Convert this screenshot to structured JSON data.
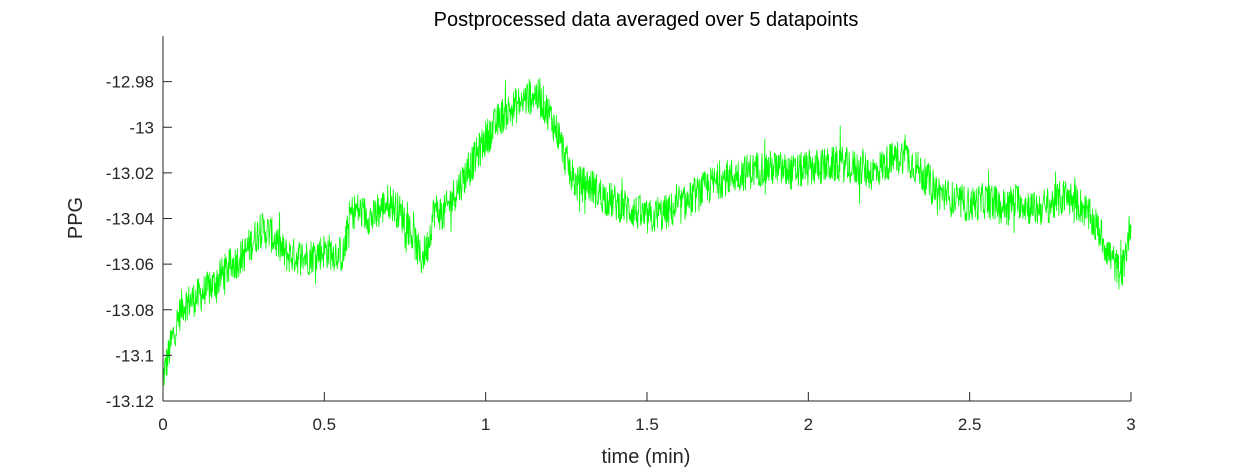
{
  "chart_data": {
    "type": "line",
    "title": "Postprocessed data averaged over 5 datapoints",
    "xlabel": "time (min)",
    "ylabel": "PPG",
    "xlim": [
      0,
      3
    ],
    "ylim": [
      -13.12,
      -12.96
    ],
    "x_ticks": [
      0,
      0.5,
      1,
      1.5,
      2,
      2.5,
      3
    ],
    "x_tick_labels": [
      "0",
      "0.5",
      "1",
      "1.5",
      "2",
      "2.5",
      "3"
    ],
    "y_ticks": [
      -13.12,
      -13.1,
      -13.08,
      -13.06,
      -13.04,
      -13.02,
      -13,
      -12.98
    ],
    "y_tick_labels": [
      "-13.12",
      "-13.1",
      "-13.08",
      "-13.06",
      "-13.04",
      "-13.02",
      "-13",
      "-12.98"
    ],
    "grid": false,
    "line_color": "#00ff00",
    "series": [
      {
        "x": [
          0,
          0.03,
          0.06,
          0.1,
          0.15,
          0.2,
          0.25,
          0.3,
          0.33,
          0.38,
          0.45,
          0.5,
          0.56,
          0.58,
          0.6,
          0.65,
          0.7,
          0.75,
          0.78,
          0.8,
          0.82,
          0.84,
          0.87,
          0.9,
          0.95,
          1.0,
          1.05,
          1.1,
          1.15,
          1.18,
          1.2,
          1.23,
          1.25,
          1.28,
          1.32,
          1.36,
          1.4,
          1.45,
          1.5,
          1.55,
          1.6,
          1.65,
          1.7,
          1.75,
          1.8,
          1.85,
          1.9,
          1.95,
          2.0,
          2.05,
          2.1,
          2.15,
          2.2,
          2.25,
          2.3,
          2.35,
          2.4,
          2.45,
          2.5,
          2.55,
          2.6,
          2.65,
          2.7,
          2.75,
          2.8,
          2.85,
          2.9,
          2.93,
          2.95,
          2.97,
          2.99,
          3.0
        ],
        "y": [
          -13.11,
          -13.092,
          -13.078,
          -13.075,
          -13.07,
          -13.062,
          -13.056,
          -13.045,
          -13.046,
          -13.056,
          -13.057,
          -13.054,
          -13.056,
          -13.038,
          -13.036,
          -13.04,
          -13.032,
          -13.04,
          -13.05,
          -13.058,
          -13.052,
          -13.036,
          -13.038,
          -13.03,
          -13.018,
          -13.005,
          -12.995,
          -12.99,
          -12.985,
          -12.99,
          -12.995,
          -13.005,
          -13.015,
          -13.025,
          -13.025,
          -13.03,
          -13.033,
          -13.036,
          -13.04,
          -13.038,
          -13.035,
          -13.03,
          -13.025,
          -13.022,
          -13.02,
          -13.018,
          -13.018,
          -13.02,
          -13.018,
          -13.017,
          -13.016,
          -13.018,
          -13.02,
          -13.015,
          -13.012,
          -13.02,
          -13.028,
          -13.032,
          -13.034,
          -13.032,
          -13.035,
          -13.032,
          -13.036,
          -13.034,
          -13.03,
          -13.035,
          -13.045,
          -13.055,
          -13.06,
          -13.065,
          -13.05,
          -13.04
        ]
      }
    ]
  }
}
